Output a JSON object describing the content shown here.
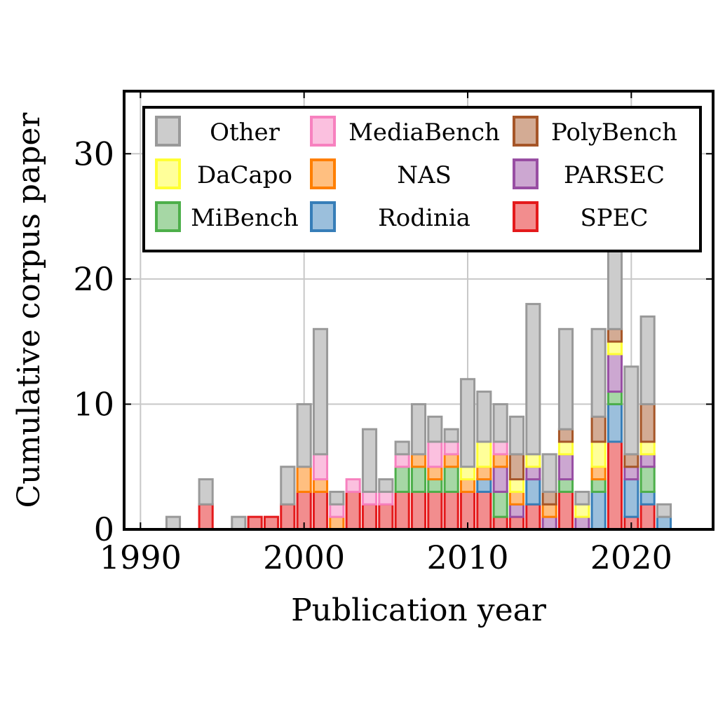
{
  "chart_data": {
    "type": "bar",
    "stacked": true,
    "xlabel": "Publication year",
    "ylabel": "Cumulative corpus paper",
    "xlim": [
      1989,
      2025
    ],
    "ylim": [
      0,
      35
    ],
    "x_ticks": [
      1990,
      2000,
      2010,
      2020
    ],
    "y_ticks": [
      0,
      10,
      20,
      30
    ],
    "grid": true,
    "legend_position": "top",
    "legend_columns": 3,
    "x": [
      1992,
      1994,
      1996,
      1997,
      1998,
      1999,
      2000,
      2001,
      2002,
      2003,
      2004,
      2005,
      2006,
      2007,
      2008,
      2009,
      2010,
      2011,
      2012,
      2013,
      2014,
      2015,
      2016,
      2017,
      2018,
      2019,
      2020,
      2021,
      2022
    ],
    "series": [
      {
        "name": "SPEC",
        "color": "#e41a1c",
        "values": [
          0,
          2,
          0,
          1,
          1,
          2,
          3,
          3,
          0,
          3,
          2,
          2,
          3,
          3,
          3,
          3,
          3,
          3,
          1,
          1,
          2,
          0,
          3,
          0,
          0,
          7,
          1,
          2,
          0
        ]
      },
      {
        "name": "Rodinia",
        "color": "#377eb8",
        "values": [
          0,
          0,
          0,
          0,
          0,
          0,
          0,
          0,
          0,
          0,
          0,
          0,
          0,
          0,
          0,
          0,
          0,
          1,
          0,
          0,
          2,
          0,
          0,
          0,
          3,
          3,
          3,
          1,
          1
        ]
      },
      {
        "name": "MiBench",
        "color": "#4daf4a",
        "values": [
          0,
          0,
          0,
          0,
          0,
          0,
          0,
          0,
          0,
          0,
          0,
          0,
          2,
          2,
          1,
          2,
          0,
          0,
          2,
          0,
          0,
          0,
          1,
          0,
          1,
          1,
          0,
          2,
          0
        ]
      },
      {
        "name": "PARSEC",
        "color": "#984ea3",
        "values": [
          0,
          0,
          0,
          0,
          0,
          0,
          0,
          0,
          0,
          0,
          0,
          0,
          0,
          0,
          0,
          0,
          0,
          0,
          2,
          1,
          1,
          1,
          2,
          1,
          0,
          3,
          1,
          1,
          0
        ]
      },
      {
        "name": "NAS",
        "color": "#ff7f00",
        "values": [
          0,
          0,
          0,
          0,
          0,
          0,
          2,
          1,
          1,
          0,
          0,
          0,
          0,
          1,
          1,
          1,
          1,
          1,
          1,
          1,
          0,
          1,
          0,
          0,
          1,
          0,
          0,
          0,
          0
        ]
      },
      {
        "name": "DaCapo",
        "color": "#ffff33",
        "values": [
          0,
          0,
          0,
          0,
          0,
          0,
          0,
          0,
          0,
          0,
          0,
          0,
          0,
          0,
          0,
          0,
          1,
          2,
          0,
          1,
          1,
          0,
          1,
          1,
          2,
          1,
          0,
          1,
          0
        ]
      },
      {
        "name": "PolyBench",
        "color": "#a65628",
        "values": [
          0,
          0,
          0,
          0,
          0,
          0,
          0,
          0,
          0,
          0,
          0,
          0,
          0,
          0,
          0,
          0,
          0,
          0,
          0,
          2,
          0,
          1,
          1,
          0,
          2,
          1,
          1,
          3,
          0
        ]
      },
      {
        "name": "MediaBench",
        "color": "#f781bf",
        "values": [
          0,
          0,
          0,
          0,
          0,
          0,
          0,
          2,
          1,
          1,
          1,
          1,
          1,
          0,
          2,
          1,
          0,
          0,
          1,
          0,
          0,
          0,
          0,
          0,
          0,
          0,
          0,
          0,
          0
        ]
      },
      {
        "name": "Other",
        "color": "#999999",
        "values": [
          1,
          2,
          1,
          0,
          0,
          3,
          5,
          10,
          1,
          0,
          5,
          1,
          1,
          4,
          2,
          1,
          7,
          4,
          3,
          3,
          12,
          3,
          8,
          1,
          7,
          7,
          7,
          7,
          1
        ]
      }
    ],
    "legend_order": [
      "Other",
      "MediaBench",
      "PolyBench",
      "DaCapo",
      "NAS",
      "PARSEC",
      "MiBench",
      "Rodinia",
      "SPEC"
    ]
  }
}
